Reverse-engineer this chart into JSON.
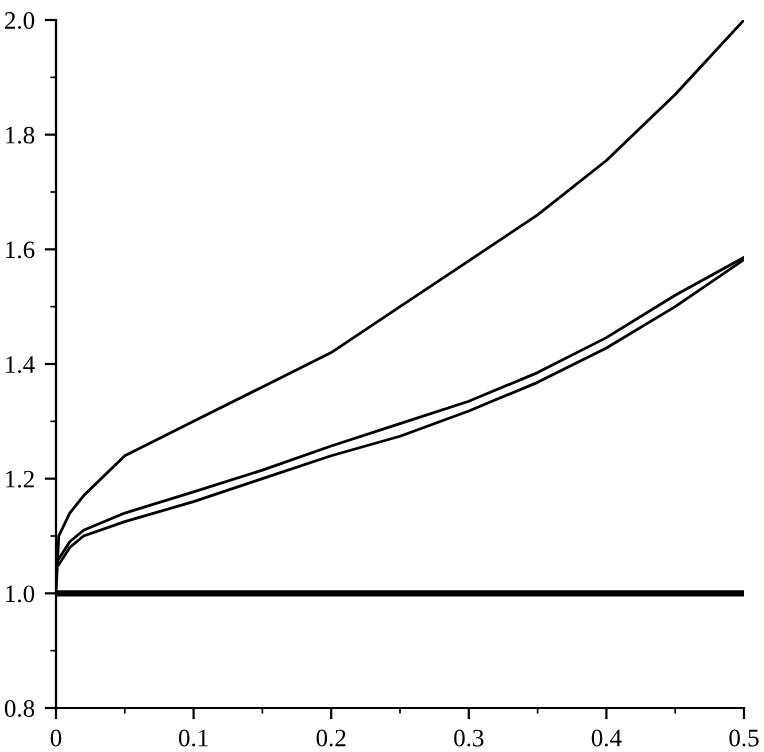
{
  "chart_data": {
    "type": "line",
    "line_style": "solid",
    "marker": "none",
    "grid": false,
    "legend": false,
    "xlim": [
      0,
      0.5
    ],
    "ylim": [
      0.8,
      2.0
    ],
    "xticks": [
      0,
      {
        "value": 0.05,
        "label": null
      },
      0.1,
      {
        "value": 0.15,
        "label": null
      },
      0.2,
      {
        "value": 0.25,
        "label": null
      },
      0.3,
      {
        "value": 0.35,
        "label": null
      },
      0.4,
      {
        "value": 0.45,
        "label": null
      },
      0.5
    ],
    "yticks": [
      0.8,
      {
        "value": 0.9,
        "label": null
      },
      {
        "value": 1,
        "label": "1.0"
      },
      {
        "value": 1.1,
        "label": null
      },
      1.2,
      {
        "value": 1.3,
        "label": null
      },
      1.4,
      {
        "value": 1.5,
        "label": null
      },
      1.6,
      {
        "value": 1.7,
        "label": null
      },
      1.8,
      {
        "value": 1.9,
        "label": null
      },
      {
        "value": 2,
        "label": "2.0"
      }
    ],
    "series": [
      {
        "color": "#000000",
        "x": [
          0,
          0.002,
          0.01,
          0.02,
          0.05,
          0.1,
          0.15,
          0.2,
          0.25,
          0.3,
          0.35,
          0.4,
          0.45,
          0.5
        ],
        "values": [
          1.0,
          1.1,
          1.14,
          1.17,
          1.24,
          1.3,
          1.36,
          1.42,
          1.5,
          1.58,
          1.66,
          1.755,
          1.87,
          2.0
        ]
      },
      {
        "color": "#000000",
        "x": [
          0.002,
          0.01,
          0.02,
          0.05,
          0.1,
          0.15,
          0.2,
          0.25,
          0.3,
          0.35,
          0.4,
          0.45,
          0.5
        ],
        "values": [
          1.06,
          1.09,
          1.11,
          1.14,
          1.177,
          1.215,
          1.257,
          1.296,
          1.335,
          1.385,
          1.446,
          1.52,
          1.586
        ]
      },
      {
        "color": "#000000",
        "x": [
          0.002,
          0.01,
          0.02,
          0.05,
          0.1,
          0.15,
          0.2,
          0.25,
          0.3,
          0.35,
          0.4,
          0.45,
          0.5
        ],
        "values": [
          1.05,
          1.08,
          1.1,
          1.125,
          1.16,
          1.2,
          1.24,
          1.274,
          1.318,
          1.368,
          1.428,
          1.5,
          1.582
        ]
      },
      {
        "color": "#000000",
        "x": [
          0,
          0.5
        ],
        "values": [
          1.0,
          1.0
        ]
      }
    ]
  }
}
